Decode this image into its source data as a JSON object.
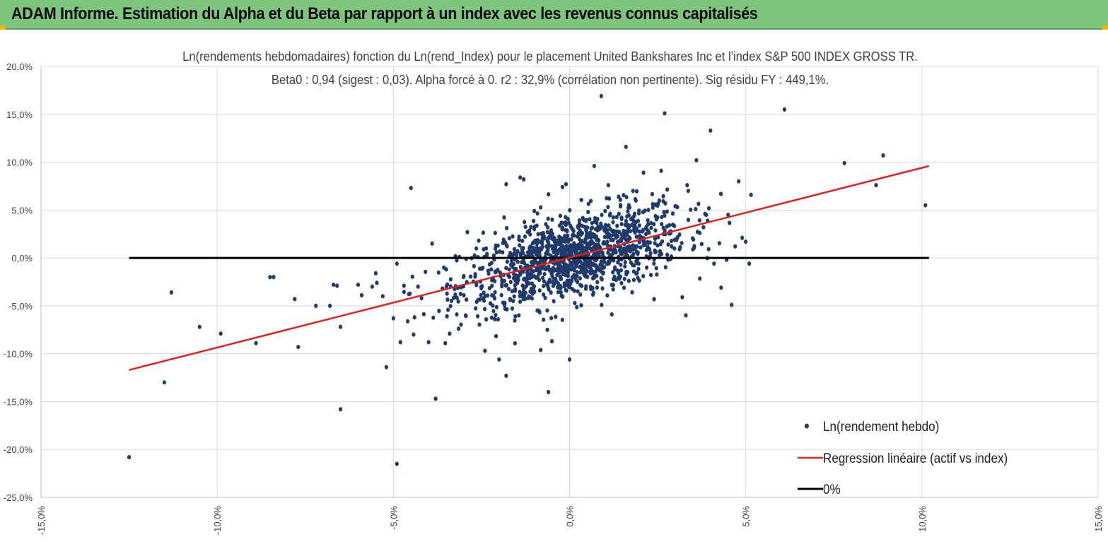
{
  "header": {
    "title": "ADAM Informe. Estimation du Alpha et du Beta par rapport à un index avec les revenus connus capitalisés"
  },
  "colors": {
    "banner_bg": "#7dc57d",
    "points": "#1f3a6b",
    "regression": "#e0201a",
    "zero_line": "#000000",
    "grid": "#d9d9d9"
  },
  "chart_data": {
    "type": "scatter",
    "title": "Ln(rendements hebdomadaires) fonction du Ln(rend_Index) pour le placement United Bankshares Inc et l'index S&P 500 INDEX GROSS TR.",
    "subtitle": "Beta0 : 0,94 (sigest : 0,03). Alpha forcé à 0. r2 : 32,9% (corrélation non pertinente). Sig résidu FY : 449,1%.",
    "xlim": [
      -15,
      15
    ],
    "ylim": [
      -25,
      20
    ],
    "x_ticks": [
      "-15,0%",
      "-10,0%",
      "-5,0%",
      "0,0%",
      "5,0%",
      "10,0%",
      "15,0%"
    ],
    "y_ticks": [
      "20,0%",
      "15,0%",
      "10,0%",
      "5,0%",
      "0,0%",
      "-5,0%",
      "-10,0%",
      "-15,0%",
      "-20,0%",
      "-25,0%"
    ],
    "grid": true,
    "legend_position": "bottom-right",
    "series": [
      {
        "name": "Ln(rendement hebdo)",
        "kind": "scatter",
        "points": [
          [
            -12.5,
            -20.8
          ],
          [
            -11.5,
            -13.0
          ],
          [
            -11.3,
            -3.6
          ],
          [
            -10.5,
            -7.2
          ],
          [
            -9.9,
            -7.9
          ],
          [
            -8.9,
            -8.9
          ],
          [
            -8.5,
            -2.0
          ],
          [
            -8.4,
            -2.0
          ],
          [
            -7.8,
            -4.3
          ],
          [
            -7.7,
            -9.3
          ],
          [
            -7.2,
            -5.0
          ],
          [
            -6.8,
            -5.0
          ],
          [
            -6.7,
            -2.8
          ],
          [
            -6.6,
            -2.9
          ],
          [
            -6.5,
            -7.2
          ],
          [
            -6.5,
            -15.8
          ],
          [
            -6.0,
            -2.8
          ],
          [
            -5.9,
            -3.9
          ],
          [
            -5.6,
            -3.0
          ],
          [
            -5.5,
            -1.6
          ],
          [
            -5.3,
            -4.0
          ],
          [
            -5.2,
            -11.4
          ],
          [
            -5.0,
            -6.3
          ],
          [
            -4.9,
            -0.6
          ],
          [
            -4.9,
            -21.5
          ],
          [
            -4.8,
            -8.8
          ],
          [
            -4.7,
            -2.9
          ],
          [
            -4.5,
            7.3
          ],
          [
            -4.4,
            -6.2
          ],
          [
            -4.3,
            -3.0
          ],
          [
            -4.2,
            -4.2
          ],
          [
            -4.0,
            -8.8
          ],
          [
            -3.9,
            1.5
          ],
          [
            -3.8,
            -14.7
          ],
          [
            -3.5,
            -1.2
          ],
          [
            -3.2,
            -5.9
          ],
          [
            -3.0,
            -3.9
          ],
          [
            -2.9,
            2.7
          ],
          [
            -2.6,
            -4.4
          ],
          [
            -2.4,
            -9.7
          ],
          [
            -2.1,
            -1.5
          ],
          [
            -2.0,
            -10.6
          ],
          [
            -1.8,
            -12.3
          ],
          [
            -1.8,
            7.7
          ],
          [
            -1.6,
            -4.5
          ],
          [
            -1.4,
            8.4
          ],
          [
            -1.3,
            8.2
          ],
          [
            -1.2,
            -2.2
          ],
          [
            -1.0,
            4.9
          ],
          [
            -0.9,
            -1.0
          ],
          [
            -0.6,
            -14.0
          ],
          [
            -0.5,
            -8.7
          ],
          [
            -0.3,
            -0.3
          ],
          [
            -0.2,
            7.4
          ],
          [
            -0.1,
            7.7
          ],
          [
            0.0,
            -10.6
          ],
          [
            0.1,
            2.9
          ],
          [
            0.2,
            0.0
          ],
          [
            0.3,
            -1.5
          ],
          [
            0.4,
            -1.1
          ],
          [
            0.5,
            1.5
          ],
          [
            0.6,
            -3.0
          ],
          [
            0.7,
            9.6
          ],
          [
            0.8,
            0.6
          ],
          [
            0.9,
            16.9
          ],
          [
            1.0,
            2.2
          ],
          [
            1.1,
            7.6
          ],
          [
            1.2,
            -5.9
          ],
          [
            1.3,
            0.8
          ],
          [
            1.4,
            4.6
          ],
          [
            1.6,
            11.6
          ],
          [
            1.8,
            7.0
          ],
          [
            2.0,
            2.3
          ],
          [
            2.1,
            8.9
          ],
          [
            2.3,
            0.5
          ],
          [
            2.4,
            -4.3
          ],
          [
            2.6,
            9.1
          ],
          [
            2.7,
            15.1
          ],
          [
            2.8,
            1.4
          ],
          [
            3.0,
            5.4
          ],
          [
            3.2,
            -4.1
          ],
          [
            3.3,
            -6.0
          ],
          [
            3.5,
            0.9
          ],
          [
            3.6,
            10.2
          ],
          [
            3.8,
            3.2
          ],
          [
            4.0,
            13.3
          ],
          [
            4.1,
            -0.6
          ],
          [
            4.3,
            -3.1
          ],
          [
            4.5,
            4.5
          ],
          [
            4.6,
            -4.9
          ],
          [
            4.7,
            1.2
          ],
          [
            4.8,
            8.0
          ],
          [
            4.9,
            2.1
          ],
          [
            5.0,
            1.7
          ],
          [
            5.1,
            -0.6
          ],
          [
            6.1,
            15.5
          ],
          [
            7.8,
            9.9
          ],
          [
            8.7,
            7.6
          ],
          [
            8.9,
            10.7
          ],
          [
            10.1,
            5.5
          ],
          [
            0.35,
            -0.8
          ],
          [
            0.45,
            0.9
          ],
          [
            -0.25,
            1.4
          ],
          [
            0.15,
            -0.4
          ]
        ],
        "density_note": ""
      },
      {
        "name": "Regression linéaire (actif vs index)",
        "kind": "line",
        "x": [
          -12.5,
          10.2
        ],
        "y": [
          -11.7,
          9.6
        ]
      },
      {
        "name": "0%",
        "kind": "line",
        "x": [
          -12.5,
          10.2
        ],
        "y": [
          0,
          0
        ]
      }
    ]
  }
}
